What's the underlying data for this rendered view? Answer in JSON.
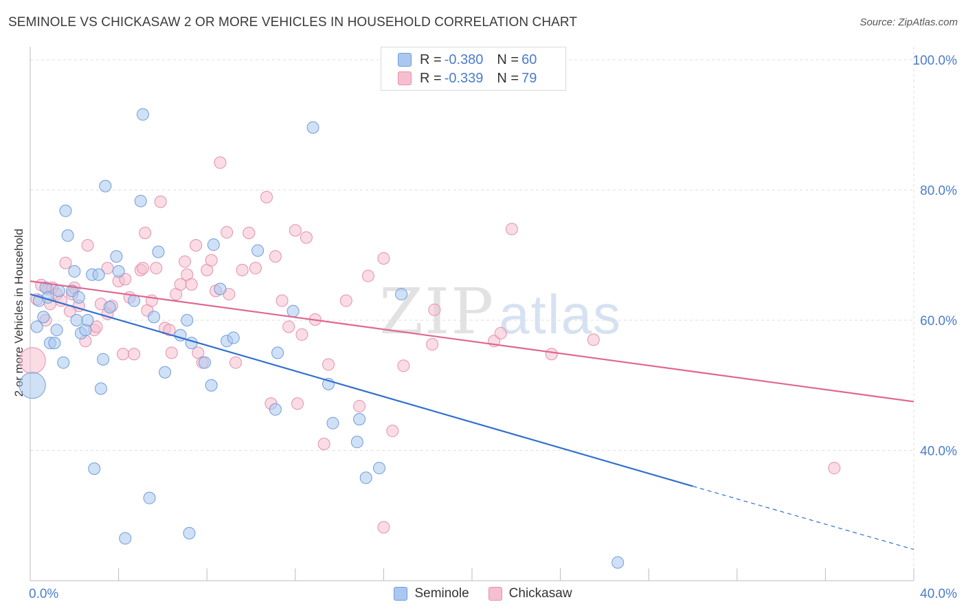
{
  "header": {
    "title": "SEMINOLE VS CHICKASAW 2 OR MORE VEHICLES IN HOUSEHOLD CORRELATION CHART",
    "source": "Source: ZipAtlas.com"
  },
  "watermark": {
    "zip": "ZIP",
    "atlas": "atlas"
  },
  "legend_top": {
    "rows": [
      {
        "r_label": "R = ",
        "r_value": "-0.380",
        "n_label": "N = ",
        "n_value": "60"
      },
      {
        "r_label": "R = ",
        "r_value": "-0.339",
        "n_label": "N = ",
        "n_value": "79"
      }
    ]
  },
  "legend_bottom": {
    "items": [
      "Seminole",
      "Chickasaw"
    ]
  },
  "colors": {
    "seminole_fill": "#aac8ef",
    "seminole_stroke": "#6d9bdc",
    "seminole_line": "#2f6fcf",
    "chickasaw_fill": "#f6bfd0",
    "chickasaw_stroke": "#e58fab",
    "chickasaw_line": "#e0658f",
    "tick": "#4a7ccc",
    "grid": "#dedede"
  },
  "chart_data": {
    "type": "scatter",
    "title": "SEMINOLE VS CHICKASAW 2 OR MORE VEHICLES IN HOUSEHOLD CORRELATION CHART",
    "xlabel": "",
    "ylabel": "2 or more Vehicles in Household",
    "xlim": [
      0,
      40
    ],
    "ylim": [
      20,
      102
    ],
    "x_tick_labels": [
      "0.0%",
      "40.0%"
    ],
    "y_ticks": [
      40,
      60,
      80,
      100
    ],
    "y_tick_labels": [
      "40.0%",
      "60.0%",
      "80.0%",
      "100.0%"
    ],
    "grid": true,
    "legend_position": "top-center",
    "series": [
      {
        "name": "Seminole",
        "R": -0.38,
        "N": 60,
        "trend": {
          "x0": 0,
          "y0": 64.0,
          "x1": 30,
          "y1": 34.5,
          "dashed_to_x": 40,
          "dashed_to_y": 24.8
        },
        "points": [
          [
            0.1,
            50.0,
            2
          ],
          [
            0.3,
            59.0,
            1
          ],
          [
            0.4,
            63.0,
            1
          ],
          [
            0.6,
            60.5,
            1
          ],
          [
            0.7,
            65.0,
            1
          ],
          [
            0.8,
            63.5,
            1
          ],
          [
            0.9,
            56.5,
            1
          ],
          [
            1.1,
            56.5,
            1
          ],
          [
            1.2,
            58.5,
            1
          ],
          [
            1.3,
            64.5,
            1
          ],
          [
            1.5,
            53.5,
            1
          ],
          [
            1.6,
            76.8,
            1
          ],
          [
            1.7,
            73.0,
            1
          ],
          [
            1.9,
            64.5,
            1
          ],
          [
            2.0,
            67.5,
            1
          ],
          [
            2.1,
            60.0,
            1
          ],
          [
            2.2,
            63.5,
            1
          ],
          [
            2.3,
            58.0,
            1
          ],
          [
            2.5,
            58.5,
            1
          ],
          [
            2.6,
            60.0,
            1
          ],
          [
            2.8,
            67.0,
            1
          ],
          [
            2.9,
            37.2,
            1
          ],
          [
            3.1,
            67.0,
            1
          ],
          [
            3.2,
            49.5,
            1
          ],
          [
            3.3,
            54.0,
            1
          ],
          [
            3.4,
            80.6,
            1
          ],
          [
            3.6,
            62.0,
            1
          ],
          [
            3.9,
            69.8,
            1
          ],
          [
            4.0,
            67.5,
            1
          ],
          [
            4.3,
            26.5,
            1
          ],
          [
            4.7,
            63.0,
            1
          ],
          [
            5.0,
            78.3,
            1
          ],
          [
            5.1,
            91.6,
            1
          ],
          [
            5.4,
            32.7,
            1
          ],
          [
            5.6,
            60.5,
            1
          ],
          [
            5.8,
            70.5,
            1
          ],
          [
            6.1,
            52.0,
            1
          ],
          [
            6.8,
            57.7,
            1
          ],
          [
            7.1,
            60.0,
            1
          ],
          [
            7.2,
            27.3,
            1
          ],
          [
            7.3,
            56.5,
            1
          ],
          [
            7.9,
            53.5,
            1
          ],
          [
            8.2,
            50.0,
            1
          ],
          [
            8.3,
            71.6,
            1
          ],
          [
            8.6,
            64.8,
            1
          ],
          [
            8.9,
            56.8,
            1
          ],
          [
            9.2,
            57.3,
            1
          ],
          [
            10.3,
            70.7,
            1
          ],
          [
            11.1,
            46.3,
            1
          ],
          [
            11.2,
            55.0,
            1
          ],
          [
            11.9,
            61.4,
            1
          ],
          [
            12.8,
            89.6,
            1
          ],
          [
            13.5,
            50.2,
            1
          ],
          [
            13.7,
            44.2,
            1
          ],
          [
            14.8,
            41.3,
            1
          ],
          [
            14.9,
            44.8,
            1
          ],
          [
            15.2,
            35.8,
            1
          ],
          [
            15.8,
            37.3,
            1
          ],
          [
            16.8,
            64.0,
            1
          ],
          [
            26.6,
            22.8,
            1
          ]
        ]
      },
      {
        "name": "Chickasaw",
        "R": -0.339,
        "N": 79,
        "trend": {
          "x0": 0,
          "y0": 66.0,
          "x1": 40,
          "y1": 47.5
        },
        "points": [
          [
            0.1,
            53.8,
            2
          ],
          [
            0.3,
            63.2,
            1
          ],
          [
            0.5,
            65.4,
            1
          ],
          [
            0.7,
            60.0,
            1
          ],
          [
            0.8,
            64.8,
            1
          ],
          [
            0.9,
            62.5,
            1
          ],
          [
            1.0,
            65.0,
            1
          ],
          [
            1.2,
            64.0,
            1
          ],
          [
            1.4,
            63.0,
            1
          ],
          [
            1.6,
            68.8,
            1
          ],
          [
            1.8,
            61.4,
            1
          ],
          [
            1.9,
            64.0,
            1
          ],
          [
            2.0,
            65.0,
            1
          ],
          [
            2.2,
            62.2,
            1
          ],
          [
            2.5,
            56.8,
            1
          ],
          [
            2.6,
            71.5,
            1
          ],
          [
            2.9,
            58.5,
            1
          ],
          [
            3.0,
            59.0,
            1
          ],
          [
            3.2,
            62.5,
            1
          ],
          [
            3.5,
            61.0,
            1
          ],
          [
            3.5,
            68.0,
            1
          ],
          [
            3.7,
            62.2,
            1
          ],
          [
            4.0,
            66.0,
            1
          ],
          [
            4.2,
            54.8,
            1
          ],
          [
            4.3,
            66.3,
            1
          ],
          [
            4.5,
            63.5,
            1
          ],
          [
            4.7,
            54.8,
            1
          ],
          [
            5.0,
            67.7,
            1
          ],
          [
            5.1,
            68.0,
            1
          ],
          [
            5.2,
            73.4,
            1
          ],
          [
            5.3,
            61.5,
            1
          ],
          [
            5.5,
            63.0,
            1
          ],
          [
            5.7,
            68.0,
            1
          ],
          [
            5.9,
            78.2,
            1
          ],
          [
            6.1,
            58.8,
            1
          ],
          [
            6.3,
            58.5,
            1
          ],
          [
            6.4,
            55.0,
            1
          ],
          [
            6.6,
            64.0,
            1
          ],
          [
            6.8,
            65.5,
            1
          ],
          [
            7.0,
            69.0,
            1
          ],
          [
            7.1,
            67.0,
            1
          ],
          [
            7.3,
            65.5,
            1
          ],
          [
            7.5,
            71.5,
            1
          ],
          [
            7.6,
            55.0,
            1
          ],
          [
            7.8,
            53.5,
            1
          ],
          [
            8.0,
            67.7,
            1
          ],
          [
            8.2,
            69.2,
            1
          ],
          [
            8.4,
            64.5,
            1
          ],
          [
            8.6,
            84.2,
            1
          ],
          [
            8.9,
            73.5,
            1
          ],
          [
            9.0,
            64.0,
            1
          ],
          [
            9.3,
            53.5,
            1
          ],
          [
            9.6,
            67.7,
            1
          ],
          [
            9.9,
            73.4,
            1
          ],
          [
            10.2,
            68.0,
            1
          ],
          [
            10.7,
            78.9,
            1
          ],
          [
            10.9,
            47.2,
            1
          ],
          [
            11.1,
            69.8,
            1
          ],
          [
            11.4,
            63.0,
            1
          ],
          [
            11.7,
            59.0,
            1
          ],
          [
            12.0,
            73.8,
            1
          ],
          [
            12.1,
            47.2,
            1
          ],
          [
            12.3,
            57.8,
            1
          ],
          [
            12.5,
            72.7,
            1
          ],
          [
            12.9,
            60.1,
            1
          ],
          [
            13.3,
            41.0,
            1
          ],
          [
            13.5,
            53.2,
            1
          ],
          [
            14.3,
            63.0,
            1
          ],
          [
            14.9,
            46.8,
            1
          ],
          [
            15.3,
            66.8,
            1
          ],
          [
            16.0,
            28.2,
            1
          ],
          [
            16.0,
            69.5,
            1
          ],
          [
            16.4,
            43.0,
            1
          ],
          [
            16.9,
            53.0,
            1
          ],
          [
            18.2,
            56.3,
            1
          ],
          [
            18.3,
            61.6,
            1
          ],
          [
            21.0,
            56.8,
            1
          ],
          [
            21.3,
            58.0,
            1
          ],
          [
            21.8,
            74.0,
            1
          ],
          [
            23.6,
            54.8,
            1
          ],
          [
            25.5,
            57.0,
            1
          ],
          [
            36.4,
            37.3,
            1
          ]
        ]
      }
    ]
  }
}
